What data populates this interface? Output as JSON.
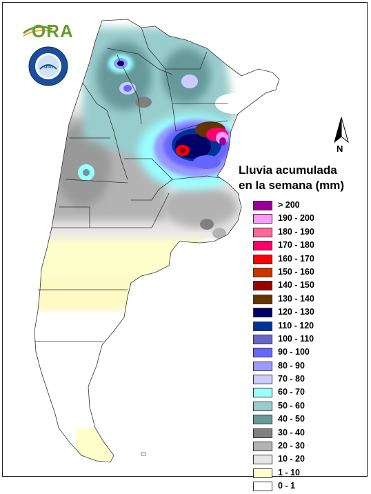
{
  "logo_ora": {
    "text": "ORA"
  },
  "logo_smn": {
    "ring_text": "SERVICIO METEOROLÓGICO NACIONAL • ARGENTINA",
    "center_text": "smn"
  },
  "north": {
    "label": "N"
  },
  "legend": {
    "title_line1": "Lluvia acumulada",
    "title_line2": "en la semana (mm)",
    "items": [
      {
        "label": "> 200",
        "color": "#990099"
      },
      {
        "label": "190 - 200",
        "color": "#ff99ff"
      },
      {
        "label": "180 - 190",
        "color": "#ff6699"
      },
      {
        "label": "170 - 180",
        "color": "#ff0066"
      },
      {
        "label": "160 - 170",
        "color": "#ff0000"
      },
      {
        "label": "150 - 160",
        "color": "#cc3300"
      },
      {
        "label": "140 - 150",
        "color": "#990000"
      },
      {
        "label": "130 - 140",
        "color": "#663300"
      },
      {
        "label": "120 - 130",
        "color": "#000066"
      },
      {
        "label": "110 - 120",
        "color": "#003399"
      },
      {
        "label": "100 - 110",
        "color": "#6666cc"
      },
      {
        "label": "90 - 100",
        "color": "#6666ff"
      },
      {
        "label": "80 - 90",
        "color": "#9999ff"
      },
      {
        "label": "70 - 80",
        "color": "#ccccff"
      },
      {
        "label": "60 - 70",
        "color": "#99ffff"
      },
      {
        "label": "50 - 60",
        "color": "#99cccc"
      },
      {
        "label": "40 - 50",
        "color": "#669999"
      },
      {
        "label": "30 - 40",
        "color": "#808080"
      },
      {
        "label": "20 - 30",
        "color": "#b3b3b3"
      },
      {
        "label": "10 - 20",
        "color": "#e6e6e6"
      },
      {
        "label": "1 - 10",
        "color": "#ffffcc"
      },
      {
        "label": "0 - 1",
        "color": "#ffffff"
      }
    ]
  }
}
